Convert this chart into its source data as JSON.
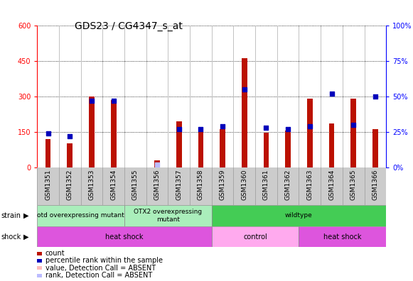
{
  "title": "GDS23 / CG4347_s_at",
  "samples": [
    "GSM1351",
    "GSM1352",
    "GSM1353",
    "GSM1354",
    "GSM1355",
    "GSM1356",
    "GSM1357",
    "GSM1358",
    "GSM1359",
    "GSM1360",
    "GSM1361",
    "GSM1362",
    "GSM1363",
    "GSM1364",
    "GSM1365",
    "GSM1366"
  ],
  "counts": [
    120,
    100,
    300,
    285,
    0,
    30,
    195,
    155,
    160,
    460,
    145,
    155,
    290,
    185,
    290,
    160
  ],
  "counts_absent": [
    false,
    false,
    false,
    false,
    true,
    false,
    false,
    false,
    false,
    false,
    false,
    false,
    false,
    false,
    false,
    false
  ],
  "percentile_ranks": [
    24,
    22,
    47,
    47,
    0,
    2,
    27,
    27,
    29,
    55,
    28,
    27,
    29,
    52,
    30,
    50
  ],
  "percentile_absent": [
    false,
    false,
    false,
    false,
    false,
    true,
    false,
    false,
    false,
    false,
    false,
    false,
    false,
    false,
    false,
    false
  ],
  "ylim_left": [
    0,
    600
  ],
  "ylim_right": [
    0,
    100
  ],
  "yticks_left": [
    0,
    150,
    300,
    450,
    600
  ],
  "yticks_right": [
    0,
    25,
    50,
    75,
    100
  ],
  "bar_color": "#bb1100",
  "bar_absent_color": "#ffbbbb",
  "dot_color": "#0000bb",
  "dot_absent_color": "#bbbbff",
  "strain_groups": [
    {
      "label": "otd overexpressing mutant",
      "start": 0,
      "end": 4,
      "color": "#aaeebb"
    },
    {
      "label": "OTX2 overexpressing\nmutant",
      "start": 4,
      "end": 8,
      "color": "#aaeebb"
    },
    {
      "label": "wildtype",
      "start": 8,
      "end": 16,
      "color": "#44cc55"
    }
  ],
  "shock_groups": [
    {
      "label": "heat shock",
      "start": 0,
      "end": 8,
      "color": "#dd55dd"
    },
    {
      "label": "control",
      "start": 8,
      "end": 12,
      "color": "#ffaaee"
    },
    {
      "label": "heat shock",
      "start": 12,
      "end": 16,
      "color": "#dd55dd"
    }
  ],
  "legend_items": [
    {
      "label": "count",
      "color": "#bb1100"
    },
    {
      "label": "percentile rank within the sample",
      "color": "#0000bb"
    },
    {
      "label": "value, Detection Call = ABSENT",
      "color": "#ffbbbb"
    },
    {
      "label": "rank, Detection Call = ABSENT",
      "color": "#bbbbff"
    }
  ],
  "bg_color": "#ffffff",
  "title_fontsize": 10,
  "tick_fontsize": 7,
  "label_fontsize": 7
}
